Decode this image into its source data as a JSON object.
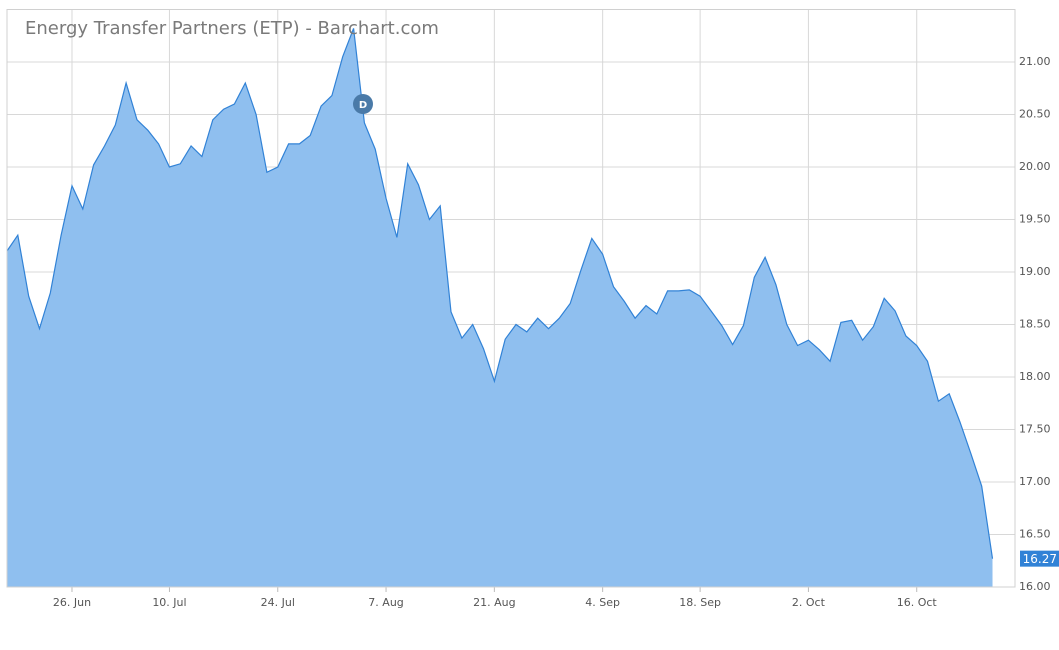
{
  "chart_data": {
    "type": "area",
    "title": "Energy Transfer Partners (ETP) - Barchart.com",
    "categories": [
      null,
      null,
      null,
      null,
      null,
      null,
      "26. Jun",
      null,
      null,
      null,
      null,
      null,
      null,
      null,
      null,
      "10. Jul",
      null,
      null,
      null,
      null,
      null,
      null,
      null,
      null,
      null,
      "24. Jul",
      null,
      null,
      null,
      null,
      null,
      null,
      null,
      null,
      null,
      "7. Aug",
      null,
      null,
      null,
      null,
      null,
      null,
      null,
      null,
      null,
      "21. Aug",
      null,
      null,
      null,
      null,
      null,
      null,
      null,
      null,
      null,
      "4. Sep",
      null,
      null,
      null,
      null,
      null,
      null,
      null,
      null,
      "18. Sep",
      null,
      null,
      null,
      null,
      null,
      null,
      null,
      null,
      null,
      "2. Oct",
      null,
      null,
      null,
      null,
      null,
      null,
      null,
      null,
      null,
      "16. Oct",
      null,
      null,
      null,
      null,
      null,
      null,
      null
    ],
    "values": [
      19.2,
      19.35,
      18.77,
      18.46,
      18.8,
      19.35,
      19.82,
      19.6,
      20.02,
      20.2,
      20.4,
      20.8,
      20.45,
      20.35,
      20.22,
      20.0,
      20.03,
      20.2,
      20.1,
      20.45,
      20.55,
      20.6,
      20.8,
      20.5,
      19.95,
      20.0,
      20.22,
      20.22,
      20.3,
      20.58,
      20.68,
      21.05,
      21.32,
      20.42,
      20.17,
      19.7,
      19.33,
      20.03,
      19.83,
      19.5,
      19.63,
      18.62,
      18.37,
      18.5,
      18.27,
      17.96,
      18.36,
      18.5,
      18.43,
      18.56,
      18.46,
      18.56,
      18.7,
      19.02,
      19.32,
      19.17,
      18.86,
      18.72,
      18.56,
      18.68,
      18.6,
      18.82,
      18.82,
      18.83,
      18.77,
      18.63,
      18.49,
      18.31,
      18.49,
      18.95,
      19.14,
      18.88,
      18.5,
      18.3,
      18.35,
      18.26,
      18.15,
      18.52,
      18.54,
      18.35,
      18.48,
      18.75,
      18.63,
      18.39,
      18.3,
      18.15,
      17.77,
      17.84,
      17.57,
      17.27,
      16.96,
      16.27
    ],
    "color": "#3182d6",
    "fill": "#8fbfef",
    "ylim": [
      16,
      21.5
    ],
    "yticks": [
      {
        "value": 16,
        "label": "16.00"
      },
      {
        "value": 16.5,
        "label": "16.50"
      },
      {
        "value": 17,
        "label": "17.00"
      },
      {
        "value": 17.5,
        "label": "17.50"
      },
      {
        "value": 18,
        "label": "18.00"
      },
      {
        "value": 18.5,
        "label": "18.50"
      },
      {
        "value": 19,
        "label": "19.00"
      },
      {
        "value": 19.5,
        "label": "19.50"
      },
      {
        "value": 20,
        "label": "20.00"
      },
      {
        "value": 20.5,
        "label": "20.50"
      },
      {
        "value": 21,
        "label": "21.00"
      }
    ],
    "annotation": "D",
    "grid": true
  }
}
